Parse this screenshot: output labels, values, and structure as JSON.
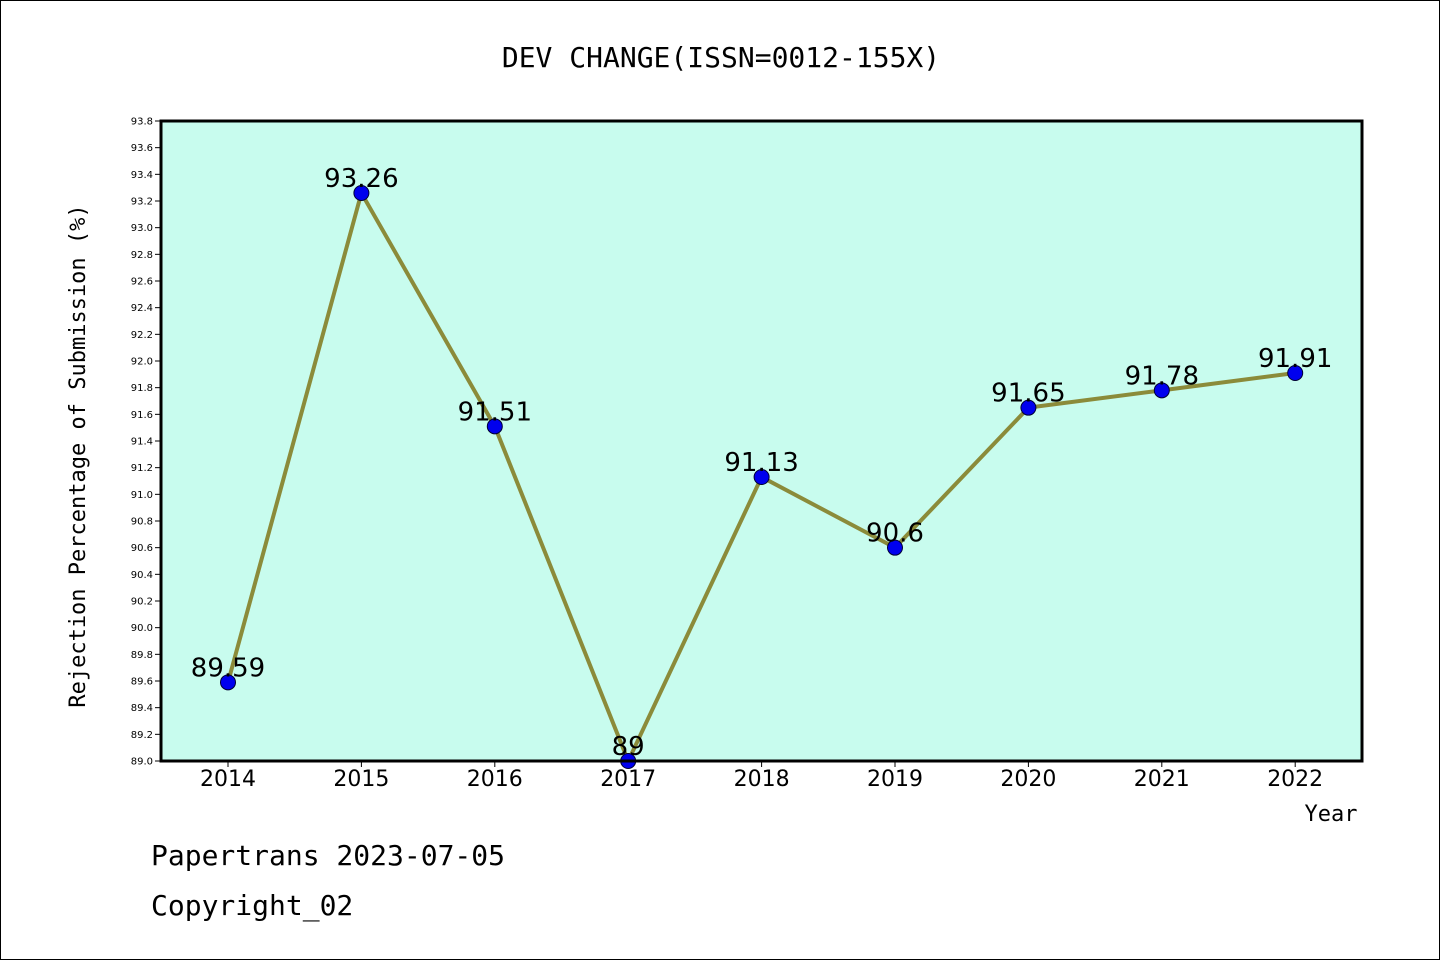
{
  "chart_data": {
    "type": "line",
    "title": "DEV CHANGE(ISSN=0012-155X)",
    "xlabel": "Year",
    "ylabel": "Rejection Percentage of Submission (%)",
    "categories": [
      "2014",
      "2015",
      "2016",
      "2017",
      "2018",
      "2019",
      "2020",
      "2021",
      "2022"
    ],
    "values": [
      89.59,
      93.26,
      91.51,
      89.0,
      91.13,
      90.6,
      91.65,
      91.78,
      91.91
    ],
    "data_labels": [
      "89.59",
      "93.26",
      "91.51",
      "89",
      "91.13",
      "90.6",
      "91.65",
      "91.78",
      "91.91"
    ],
    "ylim": [
      89.0,
      93.8
    ],
    "yticks": [
      "89.0",
      "89.2",
      "89.4",
      "89.6",
      "89.8",
      "90.0",
      "90.2",
      "90.4",
      "90.6",
      "90.8",
      "91.0",
      "91.2",
      "91.4",
      "91.6",
      "91.8",
      "92.0",
      "92.2",
      "92.4",
      "92.6",
      "92.8",
      "93.0",
      "93.2",
      "93.4",
      "93.6",
      "93.8"
    ],
    "grid": false,
    "colors": {
      "plot_background": "#c8fcee",
      "line": "#8b8b3a",
      "marker": "#0000ee"
    }
  },
  "footer": {
    "line1": "Papertrans 2023-07-05",
    "line2": "Copyright_02"
  }
}
